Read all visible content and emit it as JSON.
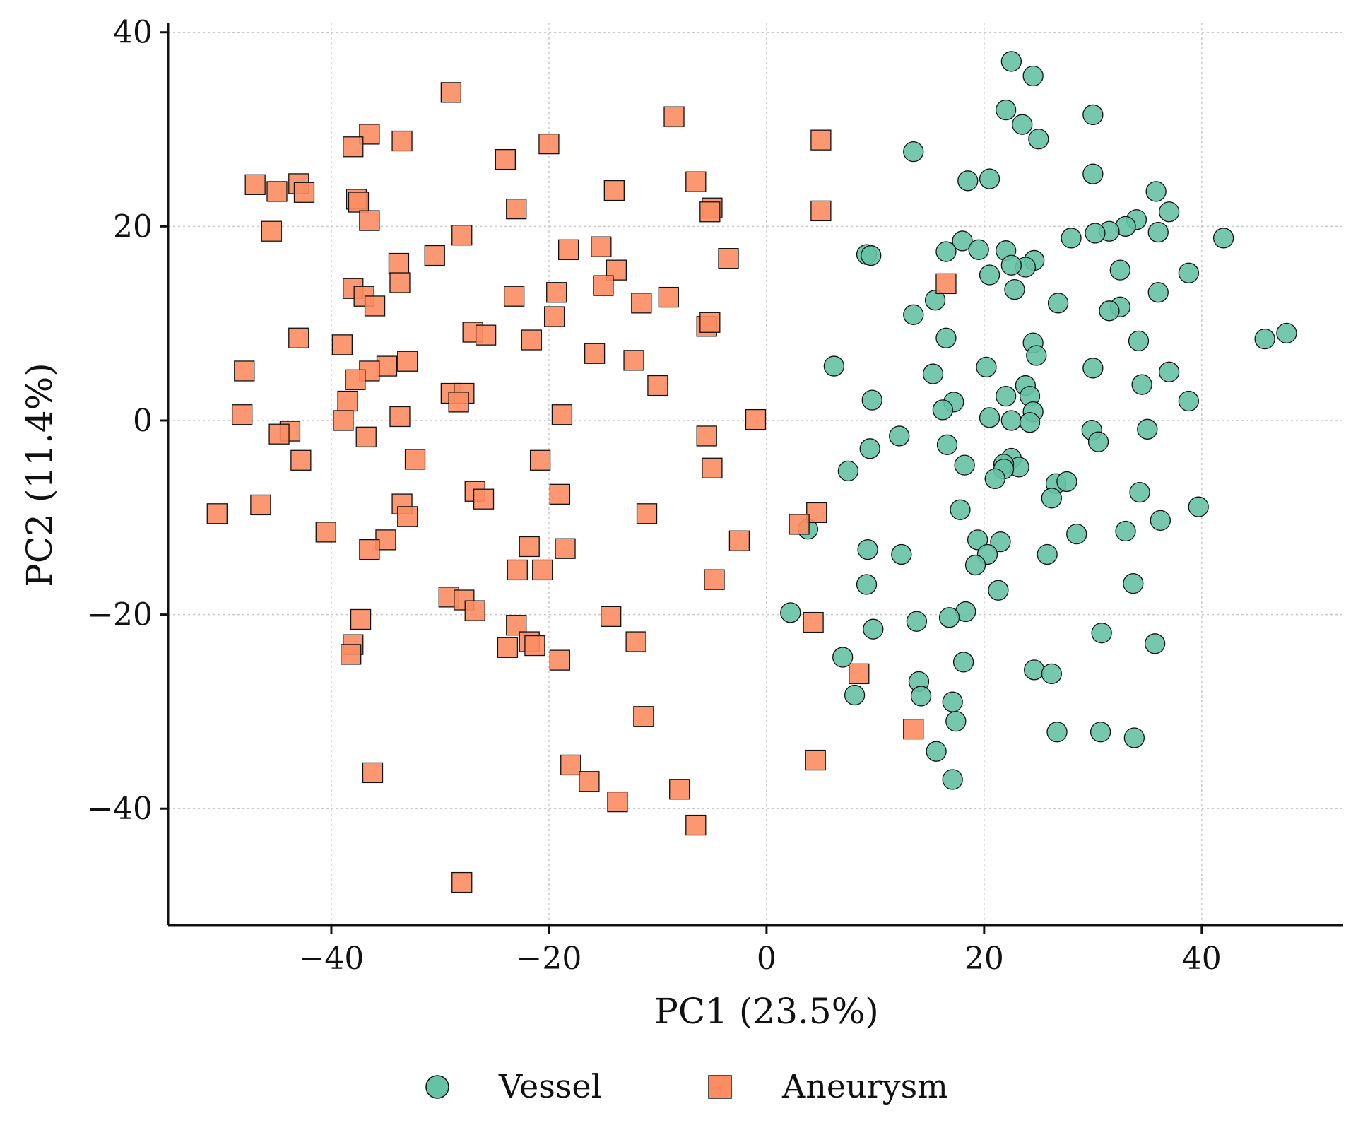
{
  "chart_data": {
    "type": "scatter",
    "title": "",
    "xlabel": "PC1 (23.5%)",
    "ylabel": "PC2 (11.4%)",
    "xlim": [
      -55,
      53
    ],
    "ylim": [
      -52,
      41
    ],
    "xticks": [
      -40,
      -20,
      0,
      20,
      40
    ],
    "yticks": [
      -40,
      -20,
      0,
      20,
      40
    ],
    "xtick_labels": [
      "−40",
      "−20",
      "0",
      "20",
      "40"
    ],
    "ytick_labels": [
      "−40",
      "−20",
      "0",
      "20",
      "40"
    ],
    "grid": true,
    "legend_position": "bottom-center",
    "series": [
      {
        "name": "Vessel",
        "marker": "circle",
        "color": "#66c2a5",
        "points": [
          [
            22.5,
            37
          ],
          [
            24.5,
            35.5
          ],
          [
            22,
            32
          ],
          [
            23.5,
            30.5
          ],
          [
            25,
            29
          ],
          [
            30,
            31.5
          ],
          [
            13.5,
            27.7
          ],
          [
            18.5,
            24.7
          ],
          [
            20.5,
            24.9
          ],
          [
            30,
            25.4
          ],
          [
            35.8,
            23.6
          ],
          [
            37,
            21.5
          ],
          [
            34,
            20.7
          ],
          [
            33,
            20
          ],
          [
            31.5,
            19.5
          ],
          [
            30.2,
            19.3
          ],
          [
            28,
            18.8
          ],
          [
            36,
            19.4
          ],
          [
            42,
            18.8
          ],
          [
            18,
            18.5
          ],
          [
            19.5,
            17.6
          ],
          [
            22,
            17.5
          ],
          [
            16.5,
            17.4
          ],
          [
            9.2,
            17.1
          ],
          [
            9.6,
            17
          ],
          [
            24.6,
            16.5
          ],
          [
            23.8,
            15.8
          ],
          [
            22.5,
            16
          ],
          [
            20.5,
            15
          ],
          [
            32.5,
            15.5
          ],
          [
            38.8,
            15.2
          ],
          [
            22.8,
            13.5
          ],
          [
            36,
            13.2
          ],
          [
            15.5,
            12.4
          ],
          [
            26.8,
            12.1
          ],
          [
            32.5,
            11.7
          ],
          [
            31.5,
            11.3
          ],
          [
            13.5,
            10.9
          ],
          [
            16.5,
            8.5
          ],
          [
            34.2,
            8.2
          ],
          [
            24.5,
            8
          ],
          [
            24.8,
            6.7
          ],
          [
            45.8,
            8.4
          ],
          [
            47.8,
            9
          ],
          [
            6.2,
            5.6
          ],
          [
            15.3,
            4.8
          ],
          [
            20.2,
            5.5
          ],
          [
            30,
            5.4
          ],
          [
            37,
            5
          ],
          [
            23.8,
            3.6
          ],
          [
            34.5,
            3.7
          ],
          [
            22,
            2.5
          ],
          [
            24.2,
            2.5
          ],
          [
            9.7,
            2.1
          ],
          [
            17.2,
            1.9
          ],
          [
            38.8,
            2
          ],
          [
            16.2,
            1.1
          ],
          [
            24.5,
            0.9
          ],
          [
            20.5,
            0.3
          ],
          [
            22.5,
            0
          ],
          [
            24.2,
            -0.2
          ],
          [
            29.9,
            -1
          ],
          [
            35,
            -0.9
          ],
          [
            12.2,
            -1.6
          ],
          [
            30.5,
            -2.2
          ],
          [
            16.6,
            -2.5
          ],
          [
            9.5,
            -2.9
          ],
          [
            22.5,
            -3.9
          ],
          [
            23.2,
            -4.8
          ],
          [
            21.8,
            -4.5
          ],
          [
            18.2,
            -4.6
          ],
          [
            7.5,
            -5.2
          ],
          [
            21.8,
            -5
          ],
          [
            21,
            -6
          ],
          [
            26.6,
            -6.5
          ],
          [
            27.6,
            -6.3
          ],
          [
            34.3,
            -7.4
          ],
          [
            26.2,
            -8
          ],
          [
            17.8,
            -9.2
          ],
          [
            39.7,
            -8.9
          ],
          [
            3.8,
            -11.2
          ],
          [
            28.5,
            -11.7
          ],
          [
            33,
            -11.4
          ],
          [
            36.2,
            -10.3
          ],
          [
            19.4,
            -12.3
          ],
          [
            21.5,
            -12.5
          ],
          [
            9.3,
            -13.3
          ],
          [
            12.4,
            -13.8
          ],
          [
            20.3,
            -13.8
          ],
          [
            25.8,
            -13.8
          ],
          [
            19.2,
            -14.9
          ],
          [
            9.2,
            -16.9
          ],
          [
            33.7,
            -16.8
          ],
          [
            21.3,
            -17.5
          ],
          [
            18.3,
            -19.7
          ],
          [
            2.2,
            -19.8
          ],
          [
            16.8,
            -20.3
          ],
          [
            13.8,
            -20.7
          ],
          [
            9.8,
            -21.5
          ],
          [
            30.8,
            -21.9
          ],
          [
            35.7,
            -23
          ],
          [
            7,
            -24.4
          ],
          [
            18.1,
            -24.9
          ],
          [
            24.6,
            -25.7
          ],
          [
            26.2,
            -26.1
          ],
          [
            14,
            -26.9
          ],
          [
            8.1,
            -28.3
          ],
          [
            14.2,
            -28.4
          ],
          [
            17.1,
            -29
          ],
          [
            17.4,
            -31
          ],
          [
            26.7,
            -32.1
          ],
          [
            30.7,
            -32.1
          ],
          [
            33.8,
            -32.7
          ],
          [
            15.6,
            -34.1
          ],
          [
            17.1,
            -37
          ]
        ]
      },
      {
        "name": "Aneurysm",
        "marker": "square",
        "color": "#fc8d62",
        "points": [
          [
            -29,
            33.8
          ],
          [
            -8.5,
            31.3
          ],
          [
            -36.5,
            29.5
          ],
          [
            -33.5,
            28.8
          ],
          [
            -38,
            28.2
          ],
          [
            -20,
            28.5
          ],
          [
            5,
            28.9
          ],
          [
            -24,
            26.9
          ],
          [
            -47,
            24.3
          ],
          [
            -43,
            24.4
          ],
          [
            -45,
            23.6
          ],
          [
            -42.5,
            23.5
          ],
          [
            -14,
            23.7
          ],
          [
            -6.5,
            24.6
          ],
          [
            -37.7,
            22.8
          ],
          [
            -37.5,
            22.5
          ],
          [
            -23,
            21.8
          ],
          [
            -5,
            21.9
          ],
          [
            -5.2,
            21.5
          ],
          [
            5,
            21.6
          ],
          [
            -36.5,
            20.6
          ],
          [
            -45.5,
            19.5
          ],
          [
            -28,
            19.1
          ],
          [
            -18.2,
            17.6
          ],
          [
            -15.2,
            17.9
          ],
          [
            -30.5,
            17
          ],
          [
            -3.5,
            16.7
          ],
          [
            -33.8,
            16.2
          ],
          [
            -13.8,
            15.5
          ],
          [
            -15,
            13.9
          ],
          [
            -33.7,
            14.2
          ],
          [
            16.5,
            14.1
          ],
          [
            -38,
            13.6
          ],
          [
            -37,
            12.8
          ],
          [
            -23.2,
            12.8
          ],
          [
            -19.3,
            13.2
          ],
          [
            -9,
            12.7
          ],
          [
            -11.5,
            12.1
          ],
          [
            -36,
            11.8
          ],
          [
            -19.5,
            10.7
          ],
          [
            -5.5,
            9.7
          ],
          [
            -5.2,
            10.1
          ],
          [
            -27,
            9.1
          ],
          [
            -25.8,
            8.8
          ],
          [
            -21.6,
            8.3
          ],
          [
            -43,
            8.5
          ],
          [
            -39,
            7.8
          ],
          [
            -15.8,
            6.9
          ],
          [
            -12.2,
            6.2
          ],
          [
            -33,
            6.1
          ],
          [
            -34.9,
            5.6
          ],
          [
            -36.5,
            5.1
          ],
          [
            -48,
            5.1
          ],
          [
            -37.8,
            4.2
          ],
          [
            -10,
            3.6
          ],
          [
            -29,
            2.8
          ],
          [
            -27.8,
            2.8
          ],
          [
            -28.3,
            1.9
          ],
          [
            -38.5,
            2
          ],
          [
            -18.8,
            0.6
          ],
          [
            -48.2,
            0.6
          ],
          [
            -33.7,
            0.4
          ],
          [
            -1,
            0.1
          ],
          [
            -38.9,
            0
          ],
          [
            -43.8,
            -1.1
          ],
          [
            -44.8,
            -1.4
          ],
          [
            -36.8,
            -1.7
          ],
          [
            -5.5,
            -1.6
          ],
          [
            -32.3,
            -4
          ],
          [
            -20.8,
            -4.1
          ],
          [
            -42.8,
            -4.1
          ],
          [
            -5,
            -4.9
          ],
          [
            -26.8,
            -7.3
          ],
          [
            -19,
            -7.6
          ],
          [
            -26,
            -8.1
          ],
          [
            -33.5,
            -8.6
          ],
          [
            -46.5,
            -8.7
          ],
          [
            -50.5,
            -9.6
          ],
          [
            -33,
            -9.9
          ],
          [
            -11,
            -9.6
          ],
          [
            4.6,
            -9.5
          ],
          [
            -40.5,
            -11.5
          ],
          [
            3,
            -10.7
          ],
          [
            -35,
            -12.3
          ],
          [
            -2.5,
            -12.4
          ],
          [
            -36.5,
            -13.3
          ],
          [
            -18.5,
            -13.2
          ],
          [
            -21.8,
            -13
          ],
          [
            -22.9,
            -15.4
          ],
          [
            -20.6,
            -15.4
          ],
          [
            -4.8,
            -16.4
          ],
          [
            -29.2,
            -18.2
          ],
          [
            -27.8,
            -18.5
          ],
          [
            -26.8,
            -19.6
          ],
          [
            -14.3,
            -20.2
          ],
          [
            4.3,
            -20.8
          ],
          [
            -37.3,
            -20.5
          ],
          [
            -23,
            -21.1
          ],
          [
            -12,
            -22.8
          ],
          [
            -21.8,
            -22.8
          ],
          [
            -21.3,
            -23.2
          ],
          [
            -38,
            -23.1
          ],
          [
            -23.8,
            -23.4
          ],
          [
            -38.2,
            -24.1
          ],
          [
            -19,
            -24.7
          ],
          [
            8.5,
            -26.1
          ],
          [
            -11.3,
            -30.5
          ],
          [
            13.5,
            -31.8
          ],
          [
            4.5,
            -35
          ],
          [
            -18,
            -35.5
          ],
          [
            -36.2,
            -36.3
          ],
          [
            -16.3,
            -37.2
          ],
          [
            -8,
            -38
          ],
          [
            -13.7,
            -39.3
          ],
          [
            -6.5,
            -41.7
          ],
          [
            -28,
            -47.6
          ]
        ]
      }
    ]
  }
}
